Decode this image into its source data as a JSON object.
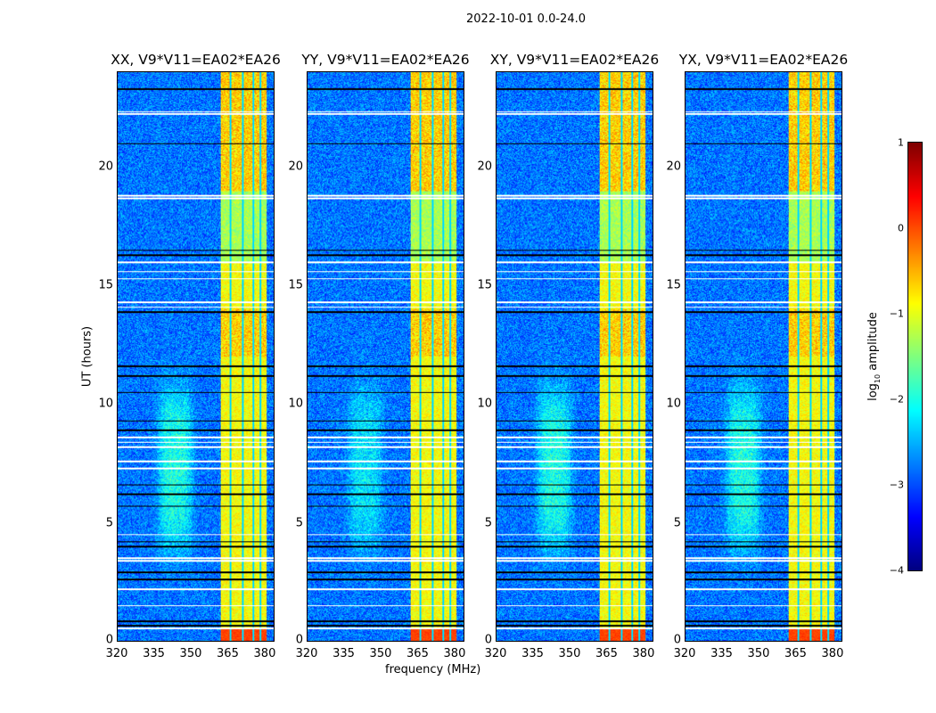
{
  "chart_data": {
    "type": "heatmap",
    "title": "2022-10-01 0.0-24.0",
    "xlabel": "frequency (MHz)",
    "ylabel": "UT (hours)",
    "xlim": [
      320,
      384
    ],
    "ylim": [
      0,
      24
    ],
    "xticks": [
      320,
      335,
      350,
      365,
      380
    ],
    "yticks": [
      0,
      5,
      10,
      15,
      20
    ],
    "panels": [
      {
        "title": "XX, V9*V11=EA02*EA26"
      },
      {
        "title": "YY, V9*V11=EA02*EA26"
      },
      {
        "title": "XY, V9*V11=EA02*EA26"
      },
      {
        "title": "YX, V9*V11=EA02*EA26"
      }
    ],
    "colorbar": {
      "label_main": "log",
      "label_sub": "10",
      "label_tail": " amplitude",
      "range": [
        -4,
        1
      ],
      "ticks": [
        "1",
        "0",
        "−1",
        "−2",
        "−3",
        "−4"
      ],
      "colormap": "jet"
    },
    "features": {
      "background_log_amplitude": -2.8,
      "rfi_band_mhz": [
        362,
        381
      ],
      "rfi_band_log_amplitude": -0.9,
      "rfi_band_gaps_mhz": [
        366,
        371,
        375.5,
        378.5
      ],
      "emission_region": {
        "freq_mhz": [
          335,
          352
        ],
        "ut_hours": [
          3.8,
          10.8
        ],
        "log_amplitude": -2.0
      },
      "flagged_white_ut": [
        22.25,
        22.35,
        14.1,
        14.3,
        15.3,
        15.6,
        16.0,
        18.7,
        18.8,
        8.4,
        8.6,
        8.2,
        7.6,
        7.3,
        4.5,
        3.5,
        3.4,
        2.2,
        1.5,
        0.55
      ],
      "flagged_black_ut": [
        16.5,
        16.3,
        11.6,
        11.2,
        10.5,
        9.3,
        8.9,
        6.6,
        6.2,
        5.7,
        4.2,
        4.0,
        2.9,
        2.6,
        0.85,
        0.65,
        13.9,
        21.0,
        23.3
      ]
    }
  }
}
